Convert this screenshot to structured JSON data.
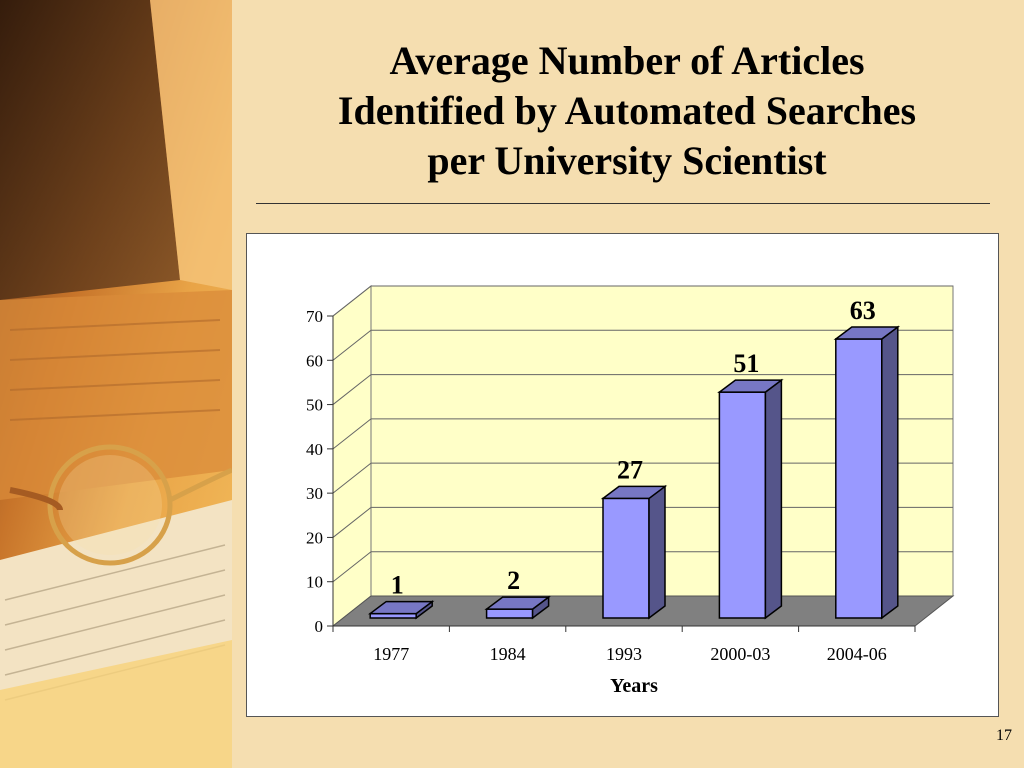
{
  "slide": {
    "title_lines": [
      "Average Number of Articles",
      "Identified by Automated Searches",
      "per University Scientist"
    ],
    "page_number": "17"
  },
  "colors": {
    "background": "#f5deb0",
    "plot_wall": "#ffffc8",
    "floor": "#808080",
    "bar_front": "#9999ff",
    "bar_side": "#55558a",
    "bar_top": "#7777c4"
  },
  "chart_data": {
    "type": "bar",
    "title": "",
    "xlabel": "Years",
    "ylabel": "",
    "categories": [
      "1977",
      "1984",
      "1993",
      "2000-03",
      "2004-06"
    ],
    "values": [
      1,
      2,
      27,
      51,
      63
    ],
    "data_labels": [
      "1",
      "2",
      "27",
      "51",
      "63"
    ],
    "ylim": [
      0,
      70
    ],
    "yticks": [
      0,
      10,
      20,
      30,
      40,
      50,
      60,
      70
    ],
    "grid": true,
    "legend": "none",
    "style": "3d-column"
  }
}
